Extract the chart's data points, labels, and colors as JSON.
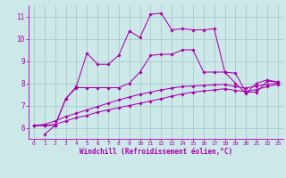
{
  "background_color": "#cce8e8",
  "grid_color": "#aacccc",
  "line_color": "#aa00aa",
  "xlabel": "Windchill (Refroidissement éolien,°C)",
  "xlim": [
    -0.5,
    23.5
  ],
  "ylim": [
    5.5,
    11.5
  ],
  "xticks": [
    0,
    1,
    2,
    3,
    4,
    5,
    6,
    7,
    8,
    9,
    10,
    11,
    12,
    13,
    14,
    15,
    16,
    17,
    18,
    19,
    20,
    21,
    22,
    23
  ],
  "yticks": [
    6,
    7,
    8,
    9,
    10,
    11
  ],
  "series1_x": [
    0,
    1,
    2,
    3,
    4,
    5,
    6,
    7,
    8,
    9,
    10,
    11,
    12,
    13,
    14,
    15,
    16,
    17,
    18,
    19,
    20,
    21,
    22,
    23
  ],
  "series1_y": [
    6.1,
    6.1,
    6.1,
    7.3,
    7.85,
    9.35,
    8.85,
    8.85,
    9.25,
    10.35,
    10.05,
    11.1,
    11.15,
    10.4,
    10.45,
    10.4,
    10.4,
    10.45,
    8.5,
    8.0,
    7.55,
    8.0,
    8.15,
    8.05
  ],
  "series2_x": [
    1,
    2,
    3,
    4,
    5,
    6,
    7,
    8,
    9,
    10,
    11,
    12,
    13,
    14,
    15,
    16,
    17,
    18,
    19,
    20,
    21,
    22,
    23
  ],
  "series2_y": [
    5.7,
    6.1,
    7.3,
    7.8,
    7.8,
    7.8,
    7.8,
    7.8,
    8.0,
    8.5,
    9.25,
    9.3,
    9.3,
    9.5,
    9.5,
    8.5,
    8.5,
    8.5,
    8.45,
    7.6,
    7.6,
    8.1,
    8.05
  ],
  "series3_x": [
    0,
    1,
    2,
    3,
    4,
    5,
    6,
    7,
    8,
    9,
    10,
    11,
    12,
    13,
    14,
    15,
    16,
    17,
    18,
    19,
    20,
    21,
    22,
    23
  ],
  "series3_y": [
    6.1,
    6.15,
    6.3,
    6.5,
    6.65,
    6.8,
    6.95,
    7.1,
    7.25,
    7.38,
    7.5,
    7.6,
    7.7,
    7.78,
    7.85,
    7.88,
    7.9,
    7.93,
    7.95,
    7.85,
    7.78,
    7.88,
    7.95,
    8.0
  ],
  "series4_x": [
    0,
    1,
    2,
    3,
    4,
    5,
    6,
    7,
    8,
    9,
    10,
    11,
    12,
    13,
    14,
    15,
    16,
    17,
    18,
    19,
    20,
    21,
    22,
    23
  ],
  "series4_y": [
    6.1,
    6.1,
    6.15,
    6.3,
    6.45,
    6.55,
    6.7,
    6.8,
    6.9,
    7.0,
    7.1,
    7.2,
    7.3,
    7.42,
    7.52,
    7.6,
    7.65,
    7.7,
    7.75,
    7.68,
    7.62,
    7.72,
    7.85,
    7.95
  ]
}
